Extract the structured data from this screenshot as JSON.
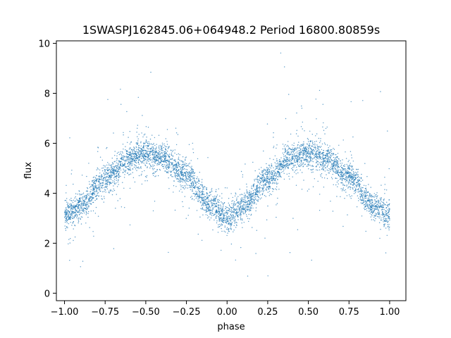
{
  "chart_data": {
    "type": "scatter",
    "title": "1SWASPJ162845.06+064948.2 Period 16800.80859s",
    "xlabel": "phase",
    "ylabel": "flux",
    "xlim": [
      -1.05,
      1.1
    ],
    "ylim": [
      -0.3,
      10.1
    ],
    "xticks": [
      -1.0,
      -0.75,
      -0.5,
      -0.25,
      0.0,
      0.25,
      0.5,
      0.75,
      1.0
    ],
    "xtick_labels": [
      "−1.00",
      "−0.75",
      "−0.50",
      "−0.25",
      "0.00",
      "0.25",
      "0.50",
      "0.75",
      "1.00"
    ],
    "yticks": [
      0,
      2,
      4,
      6,
      8,
      10
    ],
    "ytick_labels": [
      "0",
      "2",
      "4",
      "6",
      "8",
      "10"
    ],
    "grid": false,
    "marker_color": "#1f77b4",
    "series": [
      {
        "phase_range": [
          -1.0,
          1.0
        ],
        "profile_phase": [
          -1.0,
          -0.9,
          -0.75,
          -0.6,
          -0.5,
          -0.4,
          -0.25,
          -0.1,
          0.0,
          0.1,
          0.25,
          0.4,
          0.5,
          0.6,
          0.75,
          0.9,
          1.0
        ],
        "profile_flux": [
          3.1,
          3.5,
          4.6,
          5.4,
          5.6,
          5.4,
          4.7,
          3.5,
          3.0,
          3.5,
          4.6,
          5.4,
          5.6,
          5.4,
          4.7,
          3.5,
          3.1
        ]
      }
    ]
  }
}
